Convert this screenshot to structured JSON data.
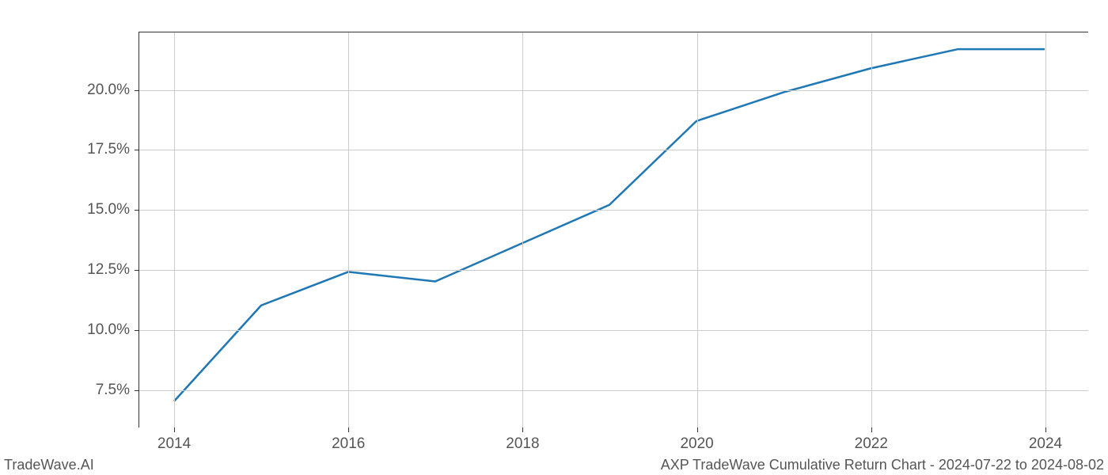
{
  "chart": {
    "type": "line",
    "x_years": [
      2014,
      2015,
      2016,
      2017,
      2018,
      2019,
      2020,
      2021,
      2022,
      2023,
      2024
    ],
    "y_values_pct": [
      7.0,
      11.0,
      12.4,
      12.0,
      13.6,
      15.2,
      18.7,
      19.9,
      20.9,
      21.7,
      21.7
    ],
    "line_color": "#1f77b4",
    "line_width": 2.5,
    "background_color": "#ffffff",
    "grid_color": "#cccccc",
    "axis_color": "#333333",
    "tick_label_color": "#555555",
    "tick_fontsize": 19,
    "x_ticks": [
      2014,
      2016,
      2018,
      2020,
      2022,
      2024
    ],
    "y_ticks": [
      7.5,
      10.0,
      12.5,
      15.0,
      17.5,
      20.0
    ],
    "y_tick_labels": [
      "7.5%",
      "10.0%",
      "12.5%",
      "15.0%",
      "17.5%",
      "20.0%"
    ],
    "xlim": [
      2013.6,
      2024.5
    ],
    "ylim": [
      5.9,
      22.4
    ]
  },
  "footer": {
    "left": "TradeWave.AI",
    "right": "AXP TradeWave Cumulative Return Chart - 2024-07-22 to 2024-08-02"
  }
}
